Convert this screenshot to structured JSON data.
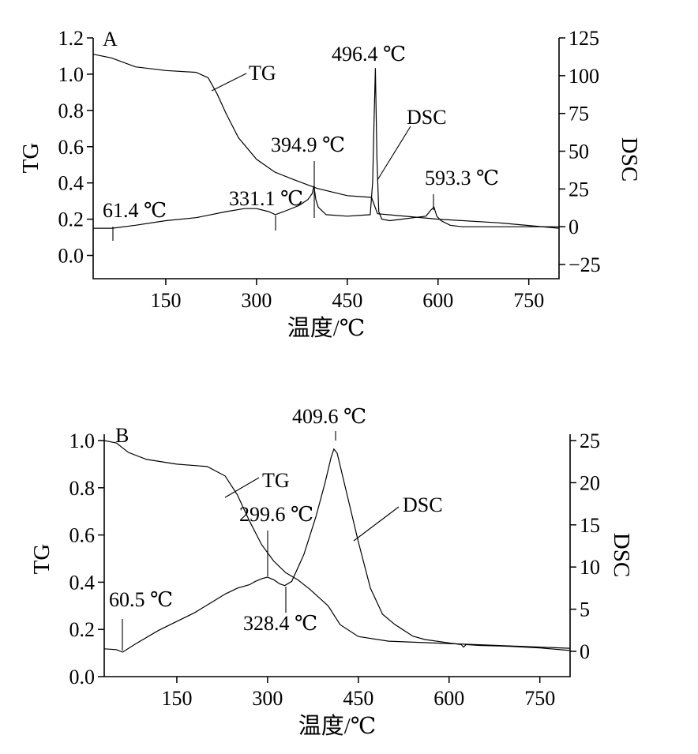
{
  "chart_data": [
    {
      "type": "line",
      "panel_label": "A",
      "xlabel": "温度/℃",
      "ylabel": "TG",
      "y2label": "DSC",
      "xlim": [
        30,
        800
      ],
      "ylim": [
        -0.05,
        1.2
      ],
      "y2lim": [
        -25,
        125
      ],
      "xticks": [
        150,
        300,
        450,
        600,
        750
      ],
      "yticks": [
        0.0,
        0.2,
        0.4,
        0.6,
        0.8,
        1.0,
        1.2
      ],
      "yticklabels": [
        "0.0",
        "0.2",
        "0.4",
        "0.6",
        "0.8",
        "1.0",
        "1.2"
      ],
      "y2ticks": [
        -25,
        0,
        25,
        50,
        75,
        100,
        125
      ],
      "y2ticklabels": [
        "−25",
        "0",
        "25",
        "50",
        "75",
        "100",
        "125"
      ],
      "series": [
        {
          "name": "TG",
          "axis": "left",
          "x": [
            30,
            60,
            100,
            150,
            200,
            220,
            235,
            250,
            270,
            300,
            330,
            360,
            400,
            450,
            490,
            500,
            600,
            700,
            800
          ],
          "y": [
            1.11,
            1.09,
            1.04,
            1.02,
            1.01,
            0.98,
            0.89,
            0.78,
            0.65,
            0.53,
            0.46,
            0.42,
            0.37,
            0.33,
            0.32,
            0.23,
            0.2,
            0.18,
            0.15
          ]
        },
        {
          "name": "DSC",
          "axis": "right",
          "x": [
            30,
            61.4,
            100,
            150,
            200,
            250,
            280,
            300,
            320,
            331.1,
            345,
            370,
            385,
            392,
            394.9,
            398,
            402,
            415,
            450,
            488,
            492,
            494,
            496.4,
            499,
            502,
            507,
            520,
            540,
            560,
            580,
            588,
            593.3,
            598,
            605,
            620,
            640,
            700,
            760,
            800
          ],
          "y": [
            -1,
            -1,
            1,
            4,
            6,
            10,
            12,
            12,
            10,
            8,
            10,
            14,
            18,
            22,
            27,
            18,
            13,
            8,
            7,
            8,
            30,
            65,
            105,
            45,
            10,
            5,
            4,
            5,
            6,
            7,
            11,
            13,
            7,
            4,
            1,
            0,
            0,
            0,
            0
          ]
        }
      ],
      "annotations": [
        {
          "text": "61.4 ℃",
          "x": 61.4,
          "axis": "right",
          "y": -1
        },
        {
          "text": "331.1 ℃",
          "x": 331.1,
          "axis": "right",
          "y": 8
        },
        {
          "text": "394.9 ℃",
          "x": 394.9,
          "axis": "right",
          "y": 27
        },
        {
          "text": "496.4 ℃",
          "x": 496.4,
          "axis": "right",
          "y": 105
        },
        {
          "text": "593.3 ℃",
          "x": 593.3,
          "axis": "right",
          "y": 13
        }
      ]
    },
    {
      "type": "line",
      "panel_label": "B",
      "xlabel": "温度/℃",
      "ylabel": "TG",
      "y2label": "DSC",
      "xlim": [
        30,
        800
      ],
      "ylim": [
        0.0,
        1.0
      ],
      "y2lim": [
        -3,
        25
      ],
      "xticks": [
        150,
        300,
        450,
        600,
        750
      ],
      "yticks": [
        0.0,
        0.2,
        0.4,
        0.6,
        0.8,
        1.0
      ],
      "yticklabels": [
        "0.0",
        "0.2",
        "0.4",
        "0.6",
        "0.8",
        "1.0"
      ],
      "y2ticks": [
        0,
        5,
        10,
        15,
        20,
        25
      ],
      "y2ticklabels": [
        "0",
        "5",
        "10",
        "15",
        "20",
        "25"
      ],
      "series": [
        {
          "name": "TG",
          "axis": "left",
          "x": [
            30,
            50,
            70,
            100,
            150,
            200,
            230,
            250,
            270,
            290,
            310,
            330,
            350,
            370,
            400,
            420,
            450,
            500,
            600,
            700,
            800
          ],
          "y": [
            1.0,
            0.99,
            0.95,
            0.92,
            0.9,
            0.89,
            0.85,
            0.77,
            0.66,
            0.56,
            0.49,
            0.44,
            0.41,
            0.37,
            0.3,
            0.22,
            0.17,
            0.15,
            0.14,
            0.13,
            0.12
          ]
        },
        {
          "name": "DSC",
          "axis": "right",
          "x": [
            30,
            50,
            60.5,
            80,
            120,
            180,
            230,
            250,
            270,
            280,
            290,
            299.6,
            310,
            320,
            328.4,
            340,
            360,
            380,
            395,
            405,
            409.6,
            415,
            430,
            450,
            470,
            490,
            510,
            540,
            560,
            600,
            620,
            624,
            628,
            650,
            700,
            750,
            800
          ],
          "y": [
            0.3,
            0.2,
            -0.1,
            0.8,
            2.5,
            4.6,
            6.8,
            7.5,
            7.9,
            8.3,
            8.6,
            8.8,
            8.5,
            8,
            7.8,
            8.3,
            11.5,
            16,
            20,
            23,
            24,
            23.5,
            19,
            13,
            7.5,
            4.4,
            3.2,
            1.8,
            1.4,
            1.0,
            0.8,
            0.5,
            0.8,
            0.7,
            0.6,
            0.4,
            0.1
          ]
        }
      ],
      "annotations": [
        {
          "text": "60.5 ℃",
          "x": 60.5,
          "axis": "right",
          "y": -0.1
        },
        {
          "text": "299.6 ℃",
          "x": 299.6,
          "axis": "right",
          "y": 8.8
        },
        {
          "text": "328.4 ℃",
          "x": 328.4,
          "axis": "right",
          "y": 7.8
        },
        {
          "text": "409.6 ℃",
          "x": 409.6,
          "axis": "right",
          "y": 24
        }
      ]
    }
  ]
}
